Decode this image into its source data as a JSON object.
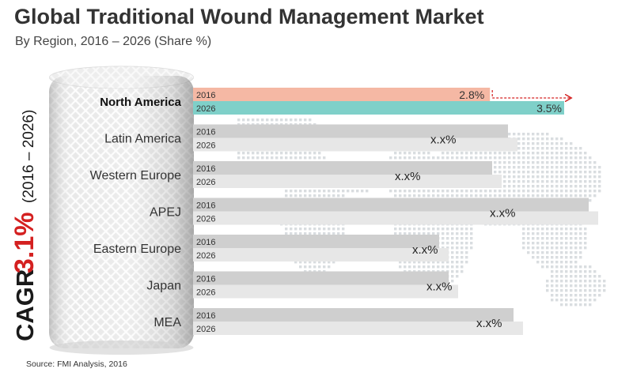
{
  "title": "Global Traditional Wound Management Market",
  "subtitle": "By Region, 2016 – 2026 (Share %)",
  "source": "Source: FMI Analysis, 2016",
  "cagr": {
    "prefix": "CAGR",
    "value": "3.1%",
    "period": "(2016 – 2026)"
  },
  "colors": {
    "highlight_2016": "#f5b8a4",
    "highlight_2026": "#7fd0c9",
    "bar_2016": "#cfcfcf",
    "bar_2026": "#e7e7e7",
    "accent_red": "#d42020",
    "map_dots": "#d9dde0"
  },
  "chart_data": {
    "type": "bar",
    "orientation": "horizontal",
    "categories": [
      "North America",
      "Latin America",
      "Western Europe",
      "APEJ",
      "Eastern Europe",
      "Japan",
      "MEA"
    ],
    "series": [
      {
        "name": "2016",
        "values": [
          2.8,
          null,
          null,
          null,
          null,
          null,
          null
        ]
      },
      {
        "name": "2026",
        "values": [
          3.5,
          null,
          null,
          null,
          null,
          null,
          null
        ]
      }
    ],
    "data_labels": [
      {
        "category": "North America",
        "series": "2016",
        "text": "2.8%"
      },
      {
        "category": "North America",
        "series": "2026",
        "text": "3.5%"
      },
      {
        "category": "Latin America",
        "text": "x.x%"
      },
      {
        "category": "Western Europe",
        "text": "x.x%"
      },
      {
        "category": "APEJ",
        "text": "x.x%"
      },
      {
        "category": "Eastern Europe",
        "text": "x.x%"
      },
      {
        "category": "Japan",
        "text": "x.x%"
      },
      {
        "category": "MEA",
        "text": "x.x%"
      }
    ],
    "highlighted_category": "North America",
    "legend": "none",
    "grid": false
  }
}
